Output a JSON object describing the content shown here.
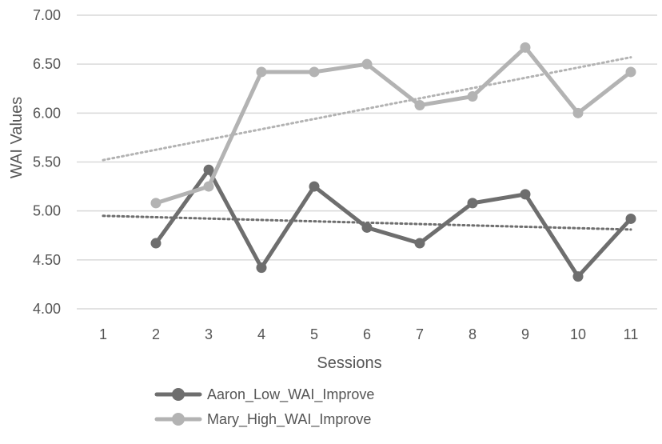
{
  "chart_data": {
    "type": "line",
    "xlabel": "Sessions",
    "ylabel": "WAI Values",
    "categories": [
      "1",
      "2",
      "3",
      "4",
      "5",
      "6",
      "7",
      "8",
      "9",
      "10",
      "11"
    ],
    "ylim": [
      4.0,
      7.0
    ],
    "yticks": [
      "4.00",
      "4.50",
      "5.00",
      "5.50",
      "6.00",
      "6.50",
      "7.00"
    ],
    "grid": true,
    "legend_position": "bottom",
    "series": [
      {
        "name": "Aaron_Low_WAI_Improve",
        "color": "#6e6e6e",
        "values": [
          null,
          4.67,
          5.42,
          4.42,
          5.25,
          4.83,
          4.67,
          5.08,
          5.17,
          4.33,
          4.92
        ],
        "trendline": {
          "style": "dotted",
          "start": 4.95,
          "end": 4.81
        }
      },
      {
        "name": "Mary_High_WAI_Improve",
        "color": "#b3b3b3",
        "values": [
          null,
          5.08,
          5.25,
          6.42,
          6.42,
          6.5,
          6.08,
          6.17,
          6.67,
          6.0,
          6.42
        ],
        "trendline": {
          "style": "dotted",
          "start": 5.52,
          "end": 6.57
        }
      }
    ]
  }
}
